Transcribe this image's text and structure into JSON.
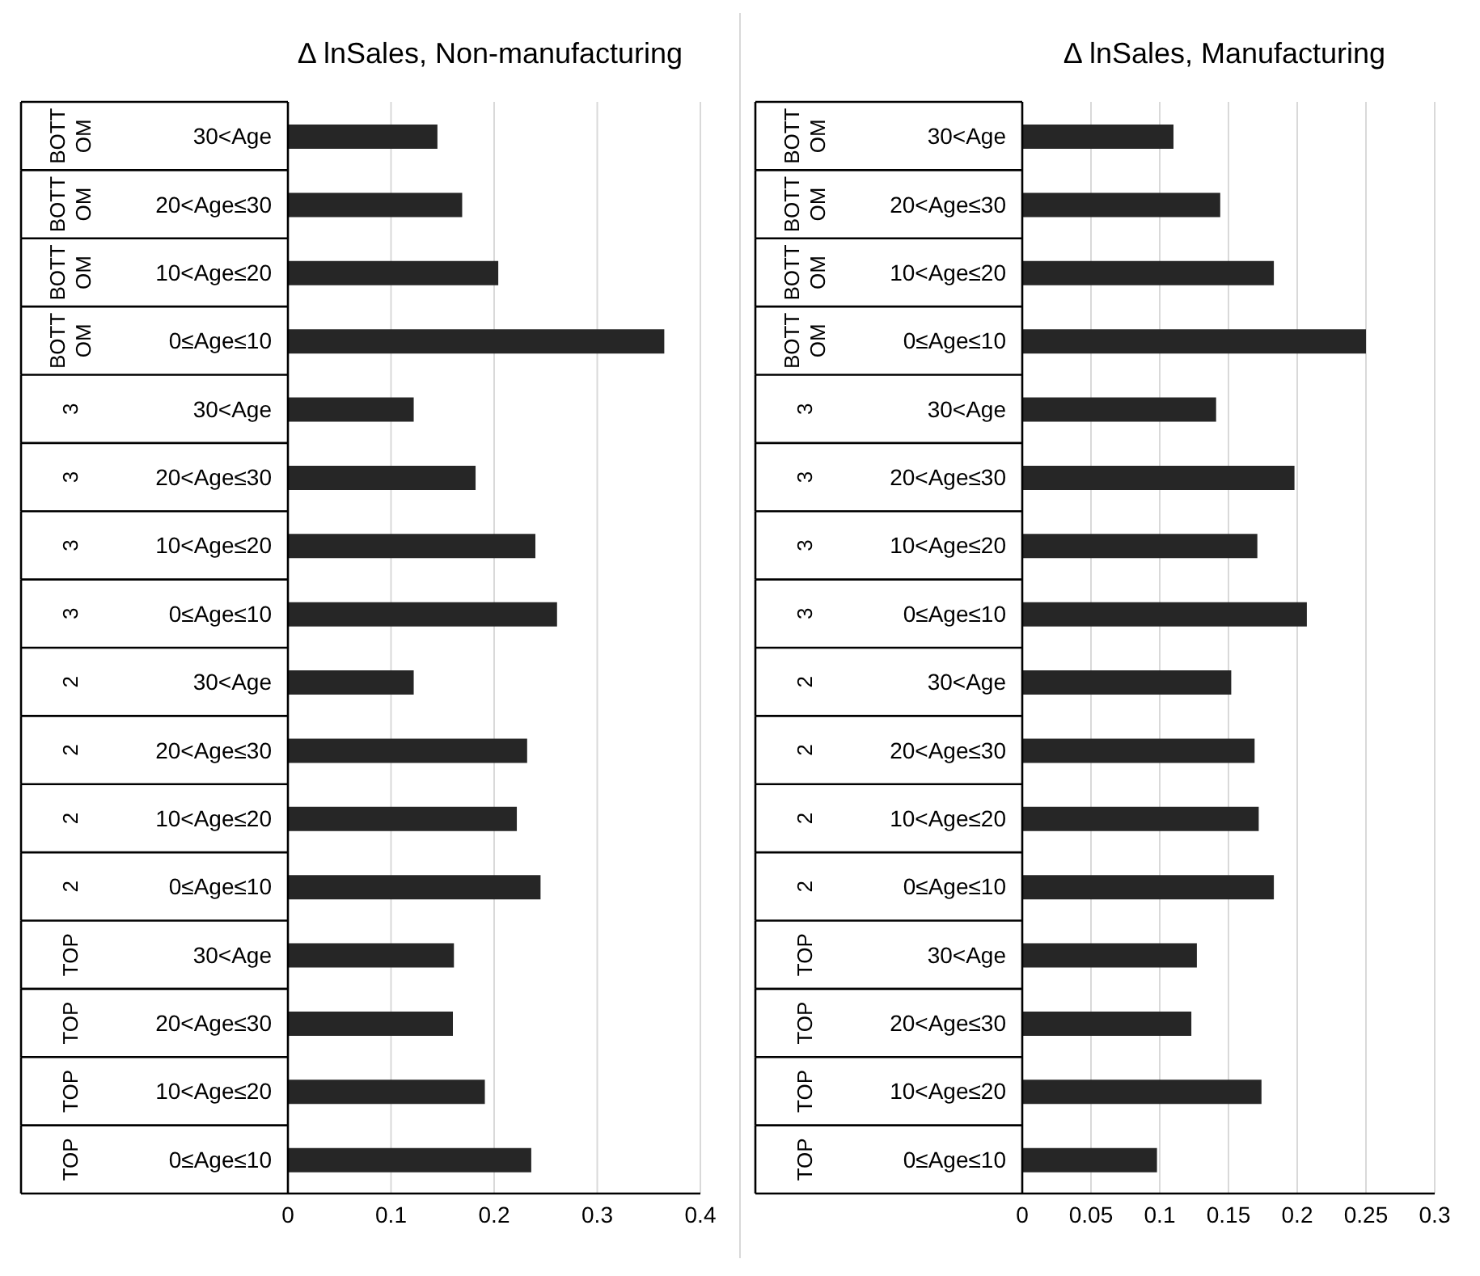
{
  "chart_data": [
    {
      "type": "bar",
      "orientation": "horizontal",
      "title": "Δ lnSales, Non-manufacturing",
      "categories": [
        "BOTTOM 30<Age",
        "BOTTOM 20<Age≤30",
        "BOTTOM 10<Age≤20",
        "BOTTOM 0≤Age≤10",
        "3 30<Age",
        "3 20<Age≤30",
        "3 10<Age≤20",
        "3 0≤Age≤10",
        "2 30<Age",
        "2 20<Age≤30",
        "2 10<Age≤20",
        "2 0≤Age≤10",
        "TOP 30<Age",
        "TOP 20<Age≤30",
        "TOP 10<Age≤20",
        "TOP 0≤Age≤10"
      ],
      "values": [
        0.145,
        0.169,
        0.204,
        0.365,
        0.122,
        0.182,
        0.24,
        0.261,
        0.122,
        0.232,
        0.222,
        0.245,
        0.161,
        0.16,
        0.191,
        0.236
      ],
      "color": "#262626",
      "xlim": [
        0,
        0.4
      ],
      "xticks": [
        0,
        0.1,
        0.2,
        0.3,
        0.4
      ],
      "grid": "x"
    },
    {
      "type": "bar",
      "orientation": "horizontal",
      "title": "Δ lnSales, Manufacturing",
      "categories": [
        "BOTTOM 30<Age",
        "BOTTOM 20<Age≤30",
        "BOTTOM 10<Age≤20",
        "BOTTOM 0≤Age≤10",
        "3 30<Age",
        "3 20<Age≤30",
        "3 10<Age≤20",
        "3 0≤Age≤10",
        "2 30<Age",
        "2 20<Age≤30",
        "2 10<Age≤20",
        "2 0≤Age≤10",
        "TOP 30<Age",
        "TOP 20<Age≤30",
        "TOP 10<Age≤20",
        "TOP 0≤Age≤10"
      ],
      "values": [
        0.11,
        0.144,
        0.183,
        0.25,
        0.141,
        0.198,
        0.171,
        0.207,
        0.152,
        0.169,
        0.172,
        0.183,
        0.127,
        0.123,
        0.174,
        0.098
      ],
      "color": "#262626",
      "xlim": [
        0,
        0.3
      ],
      "xticks": [
        0,
        0.05,
        0.1,
        0.15,
        0.2,
        0.25,
        0.3
      ],
      "grid": "x"
    }
  ]
}
